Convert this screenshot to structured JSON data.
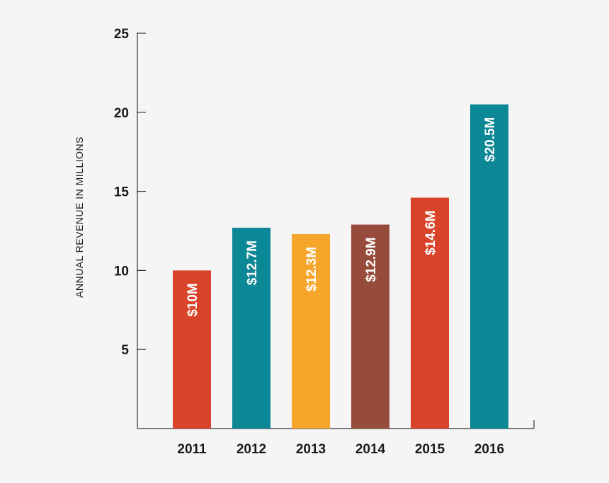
{
  "chart_data": {
    "type": "bar",
    "ylabel": "ANNUAL REVENUE IN MILLIONS",
    "xlabel": "",
    "ylim": [
      0,
      25
    ],
    "yticks": [
      5,
      10,
      15,
      20,
      25
    ],
    "categories": [
      "2011",
      "2012",
      "2013",
      "2014",
      "2015",
      "2016"
    ],
    "values": [
      10,
      12.7,
      12.3,
      12.9,
      14.6,
      20.5
    ],
    "data_labels": [
      "$10M",
      "$12.7M",
      "$12.3M",
      "$12.9M",
      "$14.6M",
      "$20.5M"
    ],
    "colors": [
      "#d9432a",
      "#0c8796",
      "#f5a62b",
      "#964b3b",
      "#d9432a",
      "#0c8796"
    ],
    "grid": false,
    "legend": "none"
  }
}
